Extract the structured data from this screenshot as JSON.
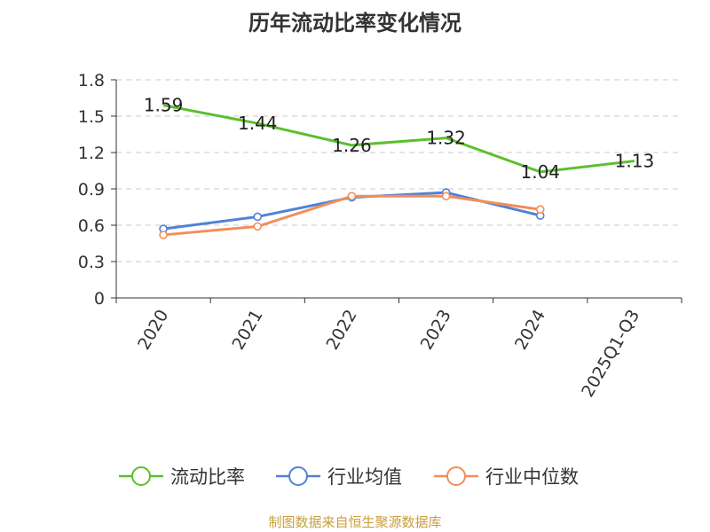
{
  "chart_data": {
    "type": "line",
    "title": "历年流动比率变化情况",
    "categories": [
      "2020",
      "2021",
      "2022",
      "2023",
      "2024",
      "2025Q1-Q3"
    ],
    "ylim": [
      0,
      1.8
    ],
    "yticks": [
      "0",
      "0.3",
      "0.6",
      "0.9",
      "1.2",
      "1.5",
      "1.8"
    ],
    "grid": true,
    "legend_position": "bottom",
    "series": [
      {
        "name": "流动比率",
        "color": "#5cbf2e",
        "values": [
          1.59,
          1.44,
          1.26,
          1.32,
          1.04,
          1.13
        ],
        "labels": [
          "1.59",
          "1.44",
          "1.26",
          "1.32",
          "1.04",
          "1.13"
        ]
      },
      {
        "name": "行业均值",
        "color": "#5181d6",
        "values": [
          0.57,
          0.67,
          0.83,
          0.87,
          0.68,
          null
        ]
      },
      {
        "name": "行业中位数",
        "color": "#f28e5a",
        "values": [
          0.52,
          0.59,
          0.84,
          0.84,
          0.73,
          null
        ]
      }
    ]
  },
  "source": "制图数据来自恒生聚源数据库"
}
